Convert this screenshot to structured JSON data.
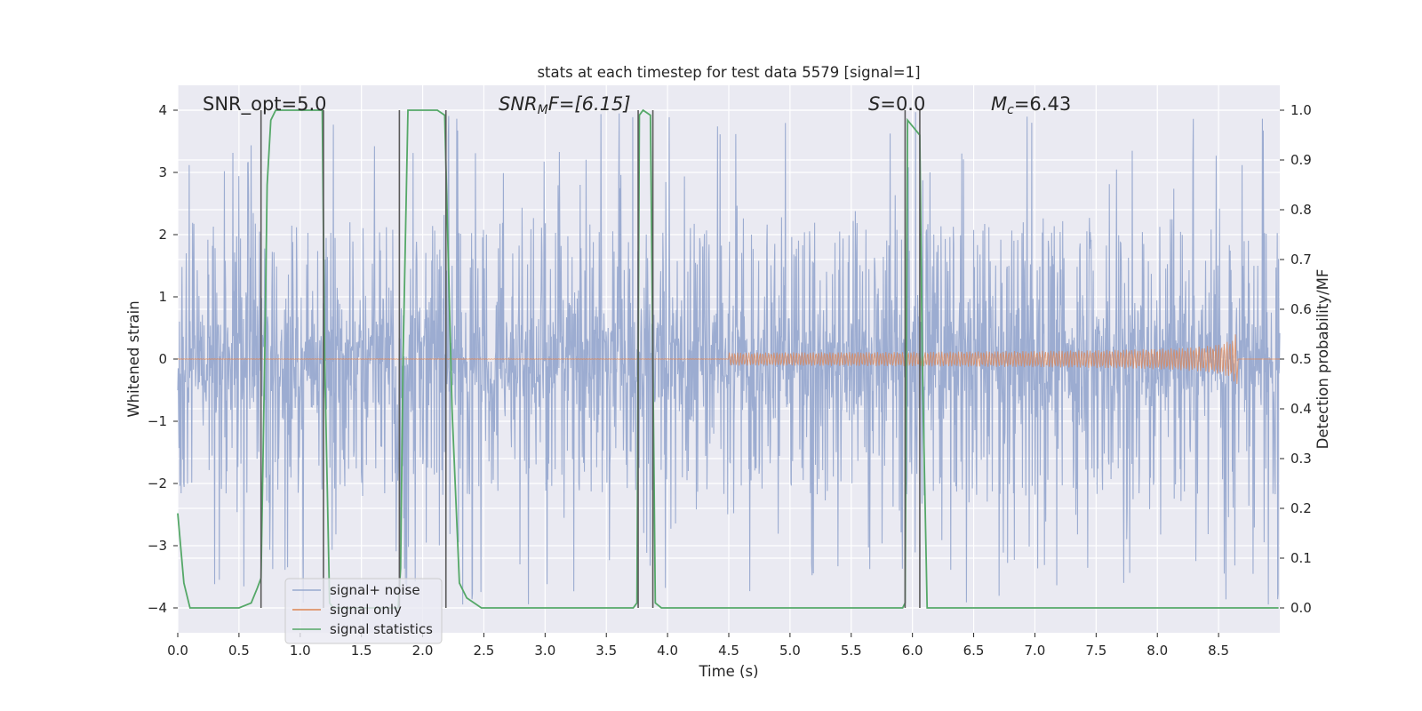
{
  "chart_data": {
    "type": "line",
    "title": "stats at each timestep for test data 5579 [signal=1]",
    "xlabel": "Time (s)",
    "ylabel_left": "Whitened strain",
    "ylabel_right": "Detection probability/MF",
    "xlim": [
      0.0,
      9.0
    ],
    "ylim_left": [
      -4.4,
      4.4
    ],
    "ylim_right": [
      -0.05,
      1.05
    ],
    "xticks": [
      "0.0",
      "0.5",
      "1.0",
      "1.5",
      "2.0",
      "2.5",
      "3.0",
      "3.5",
      "4.0",
      "4.5",
      "5.0",
      "5.5",
      "6.0",
      "6.5",
      "7.0",
      "7.5",
      "8.0",
      "8.5"
    ],
    "yticks_left": [
      "4",
      "3",
      "2",
      "1",
      "0",
      "−1",
      "−2",
      "−3",
      "−4"
    ],
    "yticks_right": [
      "1.0",
      "0.9",
      "0.8",
      "0.7",
      "0.6",
      "0.5",
      "0.4",
      "0.3",
      "0.2",
      "0.1",
      "0.0"
    ],
    "grid": true,
    "annotations": {
      "snr_opt": "SNR_opt=5.0",
      "snr_mf_label": "SNR",
      "snr_mf_sub": "M",
      "snr_mf_rest": "F=[6.15]",
      "s_label": "S",
      "s_rest": "=0.0",
      "mc_label": "M",
      "mc_sub": "c",
      "mc_rest": "=6.43"
    },
    "legend": {
      "position": "lower-left",
      "entries": [
        "signal+ noise",
        "signal only",
        "signal statistics"
      ]
    },
    "colors": {
      "noise": "#98a9cf",
      "signal": "#dd8452",
      "stats": "#55a868",
      "markers": "#5a5a5a",
      "background": "#eaeaf2"
    },
    "series": [
      {
        "name": "signal+ noise",
        "kind": "dense-noise",
        "amplitude_core": 1.6,
        "amplitude_peak": 4.0,
        "x_range": [
          0.0,
          9.0
        ]
      },
      {
        "name": "signal only",
        "kind": "chirp",
        "start_time": 4.5,
        "merger_time": 8.65,
        "peak_amplitude": 0.72,
        "end_amplitude": 0.4
      },
      {
        "name": "signal statistics",
        "axis": "right",
        "x": [
          0.0,
          0.05,
          0.1,
          0.5,
          0.6,
          0.65,
          0.68,
          0.71,
          0.73,
          0.76,
          0.8,
          1.18,
          1.2,
          1.24,
          1.27,
          1.8,
          1.82,
          1.84,
          1.88,
          2.12,
          2.18,
          2.24,
          2.3,
          2.36,
          2.42,
          2.48,
          3.72,
          3.75,
          3.77,
          3.8,
          3.86,
          3.88,
          3.9,
          3.95,
          5.92,
          5.94,
          5.96,
          6.06,
          6.08,
          6.12,
          8.99
        ],
        "y": [
          0.19,
          0.05,
          0.0,
          0.0,
          0.01,
          0.04,
          0.06,
          0.5,
          0.85,
          0.98,
          1.0,
          1.0,
          0.5,
          0.01,
          0.0,
          0.0,
          0.08,
          0.5,
          1.0,
          1.0,
          0.99,
          0.4,
          0.05,
          0.02,
          0.01,
          0.0,
          0.0,
          0.01,
          0.99,
          1.0,
          0.99,
          0.5,
          0.01,
          0.0,
          0.0,
          0.01,
          0.98,
          0.95,
          0.5,
          0.0,
          0.0
        ]
      }
    ],
    "vertical_markers": [
      0.68,
      1.19,
      1.81,
      2.19,
      3.76,
      3.88,
      5.94,
      6.06
    ]
  }
}
